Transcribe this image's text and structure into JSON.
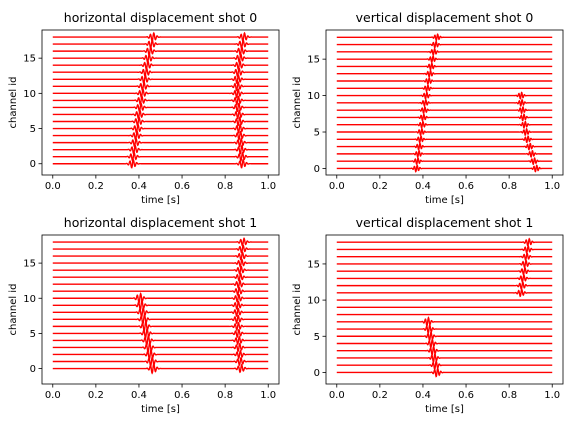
{
  "figure": {
    "background": "#ffffff",
    "trace_color": "#ff0000"
  },
  "chart_data": [
    {
      "type": "line",
      "title": "horizontal displacement shot 0",
      "xlabel": "time [s]",
      "ylabel": "channel id",
      "xlim": [
        -0.05,
        1.05
      ],
      "ylim": [
        -1.6,
        19.0
      ],
      "xticks": [
        0.0,
        0.2,
        0.4,
        0.6,
        0.8,
        1.0
      ],
      "xtick_labels": [
        "0.0",
        "0.2",
        "0.4",
        "0.6",
        "0.8",
        "1.0"
      ],
      "yticks": [
        0,
        5,
        10,
        15
      ],
      "ytick_labels": [
        "0",
        "5",
        "10",
        "15"
      ],
      "channels": 19,
      "grid": false,
      "events": [
        {
          "times": [
            0.37,
            0.374,
            0.379,
            0.383,
            0.388,
            0.392,
            0.397,
            0.401,
            0.406,
            0.41,
            0.415,
            0.42,
            0.426,
            0.432,
            0.438,
            0.444,
            0.451,
            0.458,
            0.465
          ],
          "amplitude": 0.6,
          "width": 0.012,
          "cycles": 3
        },
        {
          "times": [
            0.88,
            0.877,
            0.874,
            0.871,
            0.868,
            0.866,
            0.864,
            0.862,
            0.86,
            0.858,
            0.857,
            0.857,
            0.858,
            0.861,
            0.865,
            0.869,
            0.874,
            0.88,
            0.886
          ],
          "amplitude": 0.6,
          "width": 0.012,
          "cycles": 3
        }
      ]
    },
    {
      "type": "line",
      "title": "vertical displacement shot 0",
      "xlabel": "time [s]",
      "ylabel": "channel id",
      "xlim": [
        -0.05,
        1.05
      ],
      "ylim": [
        -0.9,
        19.0
      ],
      "xticks": [
        0.0,
        0.2,
        0.4,
        0.6,
        0.8,
        1.0
      ],
      "xtick_labels": [
        "0.0",
        "0.2",
        "0.4",
        "0.6",
        "0.8",
        "1.0"
      ],
      "yticks": [
        0,
        5,
        10,
        15
      ],
      "ytick_labels": [
        "0",
        "5",
        "10",
        "15"
      ],
      "channels": 19,
      "grid": false,
      "events": [
        {
          "times": [
            0.37,
            0.374,
            0.379,
            0.383,
            0.388,
            0.392,
            0.397,
            0.401,
            0.406,
            0.41,
            0.415,
            0.42,
            0.426,
            0.432,
            0.438,
            0.444,
            0.451,
            0.458,
            0.465
          ],
          "amplitude": 0.45,
          "width": 0.01,
          "cycles": 3
        },
        {
          "times": [
            0.925,
            0.915,
            0.905,
            0.895,
            0.885,
            0.878,
            0.872,
            0.866,
            0.861,
            0.857,
            0.855
          ],
          "amplitude": 0.45,
          "width": 0.01,
          "cycles": 3
        }
      ]
    },
    {
      "type": "line",
      "title": "horizontal displacement shot 1",
      "xlabel": "time [s]",
      "ylabel": "channel id",
      "xlim": [
        -0.05,
        1.05
      ],
      "ylim": [
        -2.2,
        19.0
      ],
      "xticks": [
        0.0,
        0.2,
        0.4,
        0.6,
        0.8,
        1.0
      ],
      "xtick_labels": [
        "0.0",
        "0.2",
        "0.4",
        "0.6",
        "0.8",
        "1.0"
      ],
      "yticks": [
        0,
        5,
        10,
        15
      ],
      "ytick_labels": [
        "0",
        "5",
        "10",
        "15"
      ],
      "channels": 19,
      "grid": false,
      "events": [
        {
          "times": [
            0.465,
            0.458,
            0.452,
            0.446,
            0.44,
            0.434,
            0.428,
            0.422,
            0.416,
            0.41,
            0.404
          ],
          "amplitude": 0.7,
          "width": 0.012,
          "cycles": 3
        },
        {
          "times": [
            0.873,
            0.87,
            0.867,
            0.864,
            0.862,
            0.86,
            0.858,
            0.857,
            0.857,
            0.858,
            0.86,
            0.862,
            0.865,
            0.868,
            0.871,
            0.874,
            0.877,
            0.88,
            0.884
          ],
          "amplitude": 0.55,
          "width": 0.012,
          "cycles": 3
        }
      ]
    },
    {
      "type": "line",
      "title": "vertical displacement shot 1",
      "xlabel": "time [s]",
      "ylabel": "channel id",
      "xlim": [
        -0.05,
        1.05
      ],
      "ylim": [
        -1.6,
        19.0
      ],
      "xticks": [
        0.0,
        0.2,
        0.4,
        0.6,
        0.8,
        1.0
      ],
      "xtick_labels": [
        "0.0",
        "0.2",
        "0.4",
        "0.6",
        "0.8",
        "1.0"
      ],
      "yticks": [
        0,
        5,
        10,
        15
      ],
      "ytick_labels": [
        "0",
        "5",
        "10",
        "15"
      ],
      "channels": 19,
      "grid": false,
      "events": [
        {
          "times": [
            0.465,
            0.458,
            0.452,
            0.446,
            0.44,
            0.434,
            0.428,
            0.422
          ],
          "amplitude": 0.6,
          "width": 0.011,
          "cycles": 3
        },
        {
          "times": [
            0.855,
            0.86,
            0.865,
            0.87,
            0.875,
            0.88,
            0.885,
            0.89
          ],
          "amplitude": 0.5,
          "width": 0.011,
          "cycles": 3,
          "start_channel": 11
        }
      ]
    }
  ]
}
